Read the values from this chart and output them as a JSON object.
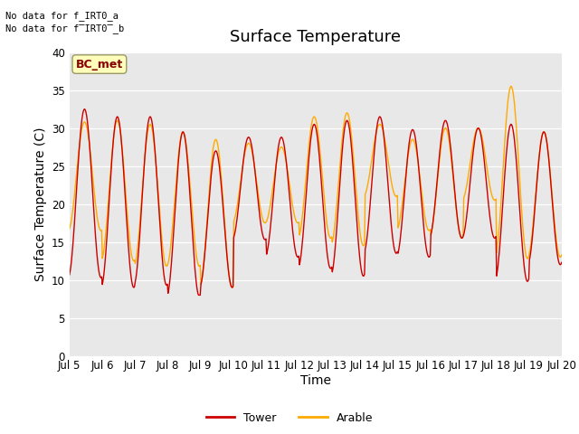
{
  "title": "Surface Temperature",
  "ylabel": "Surface Temperature (C)",
  "xlabel": "Time",
  "ylim": [
    0,
    40
  ],
  "yticks": [
    0,
    5,
    10,
    15,
    20,
    25,
    30,
    35,
    40
  ],
  "no_data_text_1": "No data for f_IRT0_a",
  "no_data_text_2": "No data for f̅IRT0̅_b",
  "bc_met_label": "BC_met",
  "x_tick_labels": [
    "Jul 5",
    "Jul 6",
    "Jul 7",
    "Jul 8",
    "Jul 9",
    "Jul 10",
    "Jul 11",
    "Jul 12",
    "Jul 13",
    "Jul 14",
    "Jul 15",
    "Jul 16",
    "Jul 17",
    "Jul 18",
    "Jul 19",
    "Jul 20"
  ],
  "tower_color": "#cc0000",
  "arable_color": "#ffaa00",
  "bg_color": "#e8e8e8",
  "fig_bg_color": "#ffffff",
  "legend_labels": [
    "Tower",
    "Arable"
  ],
  "title_fontsize": 13,
  "axis_label_fontsize": 10,
  "tick_fontsize": 8.5
}
